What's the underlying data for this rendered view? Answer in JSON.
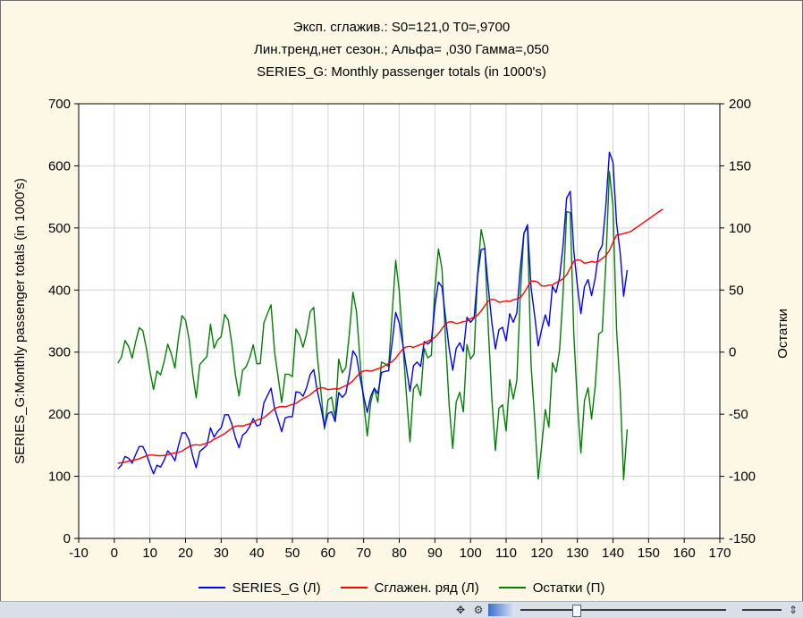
{
  "titles": {
    "line1": "Эксп. сглажив.:  S0=121,0 T0=,9700",
    "line2": "Лин.тренд,нет сезон.; Альфа=  ,030 Гамма=,050",
    "line3": "SERIES_G: Monthly passenger totals (in 1000's)"
  },
  "colors": {
    "series": "#0000ff",
    "smoothed": "#ff0000",
    "residuals": "#008000",
    "grid": "#d4d4d4",
    "background": "#fdf8e6"
  },
  "chart_data": {
    "type": "line",
    "xlabel": "",
    "ylabel": "SERIES_G:Monthly passenger totals (in 1000's)",
    "y2label": "Остатки",
    "xlim": [
      -10,
      170
    ],
    "ylim": [
      0,
      700
    ],
    "y2lim": [
      -150,
      200
    ],
    "xticks": [
      -10,
      0,
      10,
      20,
      30,
      40,
      50,
      60,
      70,
      80,
      90,
      100,
      110,
      120,
      130,
      140,
      150,
      160,
      170
    ],
    "yticks": [
      0,
      100,
      200,
      300,
      400,
      500,
      600,
      700
    ],
    "y2ticks": [
      -150,
      -100,
      -50,
      0,
      50,
      100,
      150,
      200
    ],
    "grid": true,
    "legend_position": "bottom",
    "series": [
      {
        "name": "SERIES_G (Л)",
        "axis": "left",
        "x_start": 1,
        "values": [
          112,
          118,
          132,
          129,
          121,
          135,
          148,
          148,
          136,
          119,
          104,
          118,
          115,
          126,
          141,
          135,
          125,
          149,
          170,
          170,
          158,
          133,
          114,
          140,
          145,
          150,
          178,
          163,
          172,
          178,
          199,
          199,
          184,
          162,
          146,
          166,
          171,
          180,
          193,
          181,
          183,
          218,
          230,
          242,
          209,
          191,
          172,
          194,
          196,
          196,
          236,
          235,
          229,
          243,
          264,
          272,
          237,
          211,
          180,
          201,
          204,
          188,
          235,
          227,
          234,
          264,
          302,
          293,
          259,
          229,
          203,
          229,
          242,
          233,
          267,
          269,
          270,
          315,
          364,
          347,
          312,
          274,
          237,
          278,
          284,
          277,
          317,
          313,
          318,
          374,
          413,
          405,
          355,
          306,
          271,
          306,
          315,
          301,
          356,
          348,
          355,
          422,
          465,
          467,
          404,
          347,
          305,
          336,
          340,
          318,
          362,
          348,
          363,
          435,
          491,
          505,
          404,
          359,
          310,
          337,
          360,
          342,
          406,
          396,
          420,
          472,
          548,
          559,
          463,
          407,
          362,
          405,
          417,
          391,
          419,
          461,
          472,
          535,
          622,
          606,
          508,
          461,
          390,
          432
        ]
      },
      {
        "name": "Сглажен.  ряд (Л)",
        "axis": "left",
        "x_start": 1,
        "values": [
          121.0,
          122.0,
          122.6,
          124.4,
          125.9,
          126.6,
          128.3,
          130.7,
          133.0,
          134.3,
          134.2,
          133.2,
          133.3,
          133.5,
          134.6,
          136.5,
          137.9,
          138.4,
          140.6,
          144.3,
          147.8,
          150.2,
          150.8,
          150.1,
          151.7,
          153.5,
          155.6,
          159.8,
          162.4,
          165.6,
          168.7,
          173.3,
          177.6,
          180.6,
          181.3,
          180.9,
          182.8,
          184.7,
          187.1,
          190.4,
          192.2,
          194.5,
          199.0,
          203.9,
          209.0,
          211.4,
          212.5,
          211.8,
          213.8,
          215.7,
          217.4,
          221.6,
          225.1,
          227.9,
          231.4,
          236.0,
          240.7,
          242.7,
          242.0,
          239.5,
          240.2,
          241.0,
          240.6,
          243.6,
          246.2,
          249.1,
          253.8,
          260.5,
          266.4,
          269.6,
          270.5,
          269.5,
          271.1,
          273.4,
          275.0,
          278.4,
          281.7,
          284.6,
          290.2,
          298.0,
          304.8,
          308.5,
          309.2,
          307.6,
          309.9,
          312.2,
          313.9,
          317.6,
          320.6,
          323.6,
          329.9,
          337.8,
          345.4,
          348.8,
          348.5,
          346.0,
          347.3,
          349.1,
          349.9,
          353.6,
          356.5,
          359.5,
          366.3,
          374.7,
          382.2,
          385.2,
          384.0,
          380.3,
          381.2,
          382.4,
          381.5,
          384.1,
          385.7,
          388.2,
          395.1,
          404.8,
          414.4,
          414.5,
          412.3,
          406.6,
          406.3,
          407.9,
          407.9,
          412.0,
          414.6,
          418.3,
          424.5,
          435.2,
          446.5,
          448.5,
          447.6,
          443.2,
          444.2,
          445.9,
          444.8,
          446.4,
          450.7,
          455.3,
          463.6,
          476.6,
          488.6,
          489.6,
          490.9,
          492.6,
          494.2,
          498.4,
          502.4,
          506.4,
          510.4,
          514.4,
          518.4,
          522.4,
          526.4,
          530.4
        ]
      },
      {
        "name": "Остатки (П)",
        "axis": "right",
        "x_start": 1,
        "values": [
          -9.0,
          -4.0,
          9.4,
          4.6,
          -4.9,
          8.4,
          19.7,
          17.3,
          3.0,
          -15.3,
          -30.2,
          -15.2,
          -18.3,
          -7.5,
          6.4,
          -1.5,
          -12.9,
          10.6,
          29.4,
          25.7,
          10.2,
          -17.2,
          -36.8,
          -10.1,
          -6.7,
          -3.5,
          22.4,
          3.2,
          9.6,
          12.4,
          30.3,
          25.7,
          6.4,
          -18.6,
          -35.3,
          -14.9,
          -11.8,
          -4.7,
          5.9,
          -9.4,
          -9.2,
          23.5,
          31.0,
          38.1,
          0.0,
          -20.4,
          -40.5,
          -17.8,
          -17.8,
          -19.7,
          18.6,
          13.4,
          3.9,
          15.1,
          32.6,
          36.0,
          -3.7,
          -31.7,
          -62.0,
          -38.5,
          -36.2,
          -53.0,
          -5.6,
          -16.6,
          -12.2,
          14.9,
          48.2,
          32.5,
          -7.4,
          -40.6,
          -67.5,
          -40.5,
          -29.1,
          -40.4,
          -8.0,
          -9.4,
          -11.7,
          30.4,
          73.8,
          49.0,
          7.2,
          -34.5,
          -72.2,
          -29.6,
          -25.9,
          -35.2,
          3.1,
          -4.6,
          -2.6,
          50.4,
          83.1,
          67.2,
          9.6,
          -42.8,
          -77.5,
          -40.0,
          -32.3,
          -48.1,
          6.1,
          -5.6,
          -1.5,
          62.5,
          98.7,
          84.8,
          18.8,
          -38.0,
          -79.3,
          -45.2,
          -42.4,
          -63.5,
          -22.1,
          -37.7,
          -22.7,
          46.8,
          95.9,
          100.6,
          -10.4,
          -53.3,
          -102.2,
          -75.1,
          -46.3,
          -60.5,
          -8.6,
          -16.1,
          1.7,
          47.5,
          113.1,
          112.5,
          14.5,
          -40.6,
          -81.2,
          -39.2,
          -28.8,
          -53.8,
          -27.4,
          14.6,
          16.7,
          71.4,
          145.4,
          117.4,
          18.4,
          -29.9,
          -102.6,
          -62.2
        ]
      }
    ]
  },
  "toolbar": {
    "icons": [
      "move-icon",
      "gear-icon"
    ]
  }
}
